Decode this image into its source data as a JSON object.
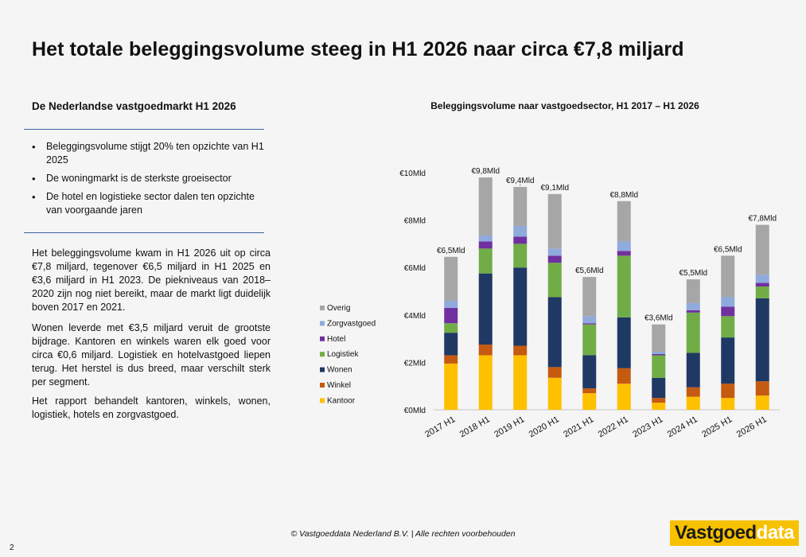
{
  "page": {
    "title": "Het totale beleggingsvolume steeg in H1 2026 naar circa €7,8 miljard",
    "page_number": "2",
    "footer": "© Vastgoeddata Nederland B.V. | Alle rechten voorbehouden",
    "logo": {
      "part1": "Vastgoed",
      "part2": "data"
    }
  },
  "left": {
    "subheading": "De Nederlandse vastgoedmarkt H1 2026",
    "bullets": [
      "Beleggingsvolume stijgt 20% ten opzichte van H1 2025",
      "De woningmarkt is de sterkste groeisector",
      "De hotel en logistieke sector dalen ten opzichte van voorgaande jaren"
    ],
    "paragraphs": [
      "Het beleggingsvolume kwam in H1 2026 uit op circa €7,8 miljard, tegenover €6,5 miljard in H1 2025 en €3,6 miljard in H1 2023. De piekniveaus van 2018–2020 zijn nog niet bereikt, maar de markt ligt duidelijk boven 2017 en 2021.",
      "Wonen leverde met €3,5 miljard veruit de grootste bijdrage. Kantoren en winkels waren elk goed voor circa €0,6 miljard. Logistiek en hotelvastgoed liepen terug. Het herstel is dus breed, maar verschilt sterk per segment.",
      "Het rapport behandelt kantoren, winkels, wonen, logistiek, hotels en zorgvastgoed."
    ]
  },
  "chart_data": {
    "type": "bar",
    "stacked": true,
    "title": "Beleggingsvolume naar vastgoedsector, H1 2017 – H1 2026",
    "categories": [
      "2017 H1",
      "2018 H1",
      "2019 H1",
      "2020 H1",
      "2021 H1",
      "2022 H1",
      "2023 H1",
      "2024 H1",
      "2025 H1",
      "2026 H1"
    ],
    "totals_labels": [
      "€6,5Mld",
      "€9,8Mld",
      "€9,4Mld",
      "€9,1Mld",
      "€5,6Mld",
      "€8,8Mld",
      "€3,6Mld",
      "€5,5Mld",
      "€6,5Mld",
      "€7,8Mld"
    ],
    "y_ticks": [
      "€0Mld",
      "€2Mld",
      "€4Mld",
      "€6Mld",
      "€8Mld",
      "€10Mld"
    ],
    "ylim": [
      0,
      10
    ],
    "unit": "miljard euro",
    "legend_position": "left",
    "grid": false,
    "series": [
      {
        "name": "Kantoor",
        "color": "#ffc000",
        "values": [
          1.95,
          2.3,
          2.3,
          1.35,
          0.7,
          1.1,
          0.3,
          0.55,
          0.5,
          0.6
        ]
      },
      {
        "name": "Winkel",
        "color": "#c55a11",
        "values": [
          0.35,
          0.45,
          0.4,
          0.45,
          0.2,
          0.65,
          0.2,
          0.4,
          0.6,
          0.6
        ]
      },
      {
        "name": "Wonen",
        "color": "#203864",
        "values": [
          0.95,
          3.0,
          3.3,
          2.95,
          1.4,
          2.15,
          0.85,
          1.45,
          1.95,
          3.5
        ]
      },
      {
        "name": "Logistiek",
        "color": "#70ad47",
        "values": [
          0.4,
          1.05,
          1.0,
          1.45,
          1.3,
          2.6,
          0.95,
          1.7,
          0.9,
          0.5
        ]
      },
      {
        "name": "Hotel",
        "color": "#7030a0",
        "values": [
          0.65,
          0.3,
          0.3,
          0.3,
          0.05,
          0.2,
          0.05,
          0.1,
          0.4,
          0.15
        ]
      },
      {
        "name": "Zorgvastgoed",
        "color": "#8faadc",
        "values": [
          0.3,
          0.25,
          0.45,
          0.3,
          0.3,
          0.4,
          0.1,
          0.3,
          0.4,
          0.35
        ]
      },
      {
        "name": "Overig",
        "color": "#a6a6a6",
        "values": [
          1.85,
          2.45,
          1.65,
          2.3,
          1.65,
          1.7,
          1.15,
          1.0,
          1.75,
          2.1
        ]
      }
    ]
  }
}
